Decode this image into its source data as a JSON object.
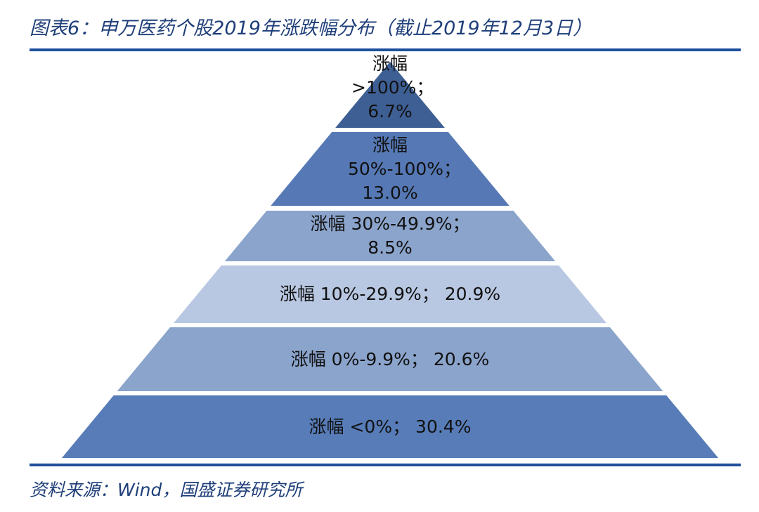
{
  "title": "图表6：申万医药个股2019年涨跌幅分布（截止2019年12月3日）",
  "chart_data": {
    "type": "pyramid",
    "categories": [
      "涨幅 >100%；",
      "涨幅 50%-100%；",
      "涨幅 30%-49.9%；",
      "涨幅 10%-29.9%；",
      "涨幅 0%-9.9%；",
      "涨幅 <0%；"
    ],
    "values": [
      6.7,
      13.0,
      8.5,
      20.9,
      20.6,
      30.4
    ],
    "value_labels": [
      "6.7%",
      "13.0%",
      "8.5%",
      "20.9%",
      "20.6%",
      "30.4%"
    ],
    "colors": [
      "#3e5f94",
      "#5679b6",
      "#8ba4cc",
      "#b9c8e2",
      "#8ba4cc",
      "#577cb8"
    ]
  },
  "source": "资料来源：Wind，国盛证券研究所"
}
